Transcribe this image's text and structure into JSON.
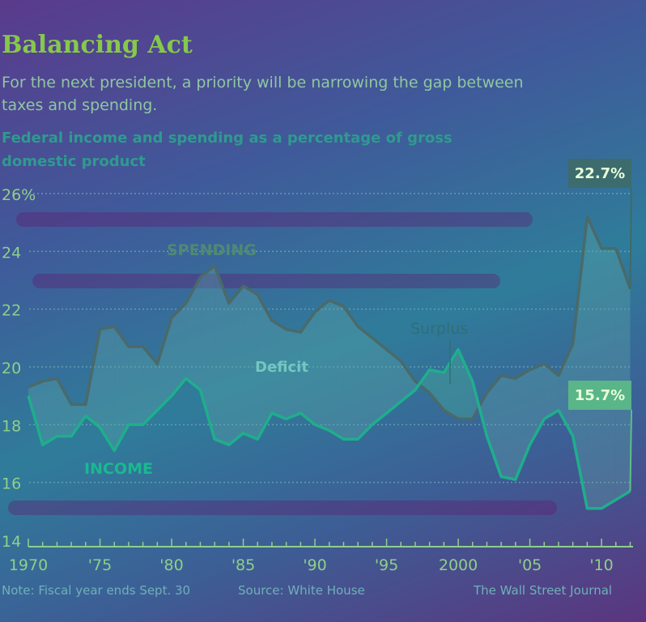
{
  "header": {
    "title": "Balancing Act",
    "subtitle": "For the next president, a priority will be narrowing the gap between taxes and spending.",
    "chart_heading": "Federal income and spending as a percentage of gross domestic product"
  },
  "footer": {
    "note": "Note: Fiscal year ends Sept. 30",
    "source": "Source: White House",
    "brand": "The Wall Street Journal"
  },
  "colors": {
    "spending_line": "#4a6a6a",
    "income_line": "#1fae8c",
    "deficit_fill": "#5fa8a8",
    "surplus_fill": "#4bb89a",
    "grid": "#6fa8b8",
    "axis_text": "#8ecf8a",
    "label_spending": "#4f8a72",
    "label_income": "#1ab890",
    "label_deficit": "#74c7c0",
    "badge_spending_bg": "#3e6b66",
    "badge_income_bg": "#5ebf86",
    "badge_text": "#e6ffd8"
  },
  "chart_data": {
    "type": "line",
    "x": [
      1970,
      1971,
      1972,
      1973,
      1974,
      1975,
      1976,
      1977,
      1978,
      1979,
      1980,
      1981,
      1982,
      1983,
      1984,
      1985,
      1986,
      1987,
      1988,
      1989,
      1990,
      1991,
      1992,
      1993,
      1994,
      1995,
      1996,
      1997,
      1998,
      1999,
      2000,
      2001,
      2002,
      2003,
      2004,
      2005,
      2006,
      2007,
      2008,
      2009,
      2010,
      2011,
      2012
    ],
    "series": [
      {
        "name": "SPENDING",
        "values": [
          19.3,
          19.5,
          19.6,
          18.7,
          18.7,
          21.3,
          21.4,
          20.7,
          20.7,
          20.1,
          21.7,
          22.2,
          23.1,
          23.5,
          22.2,
          22.8,
          22.5,
          21.6,
          21.3,
          21.2,
          21.9,
          22.3,
          22.1,
          21.4,
          21.0,
          20.6,
          20.2,
          19.5,
          19.1,
          18.5,
          18.2,
          18.2,
          19.1,
          19.7,
          19.6,
          19.9,
          20.1,
          19.7,
          20.8,
          25.2,
          24.1,
          24.1,
          22.7
        ]
      },
      {
        "name": "INCOME",
        "values": [
          19.0,
          17.3,
          17.6,
          17.6,
          18.3,
          17.9,
          17.1,
          18.0,
          18.0,
          18.5,
          19.0,
          19.6,
          19.2,
          17.5,
          17.3,
          17.7,
          17.5,
          18.4,
          18.2,
          18.4,
          18.0,
          17.8,
          17.5,
          17.5,
          18.0,
          18.4,
          18.8,
          19.2,
          19.9,
          19.8,
          20.6,
          19.5,
          17.6,
          16.2,
          16.1,
          17.3,
          18.2,
          18.5,
          17.6,
          15.1,
          15.1,
          15.4,
          15.7
        ]
      }
    ],
    "ylim": [
      14,
      26
    ],
    "y_ticks": [
      "26%",
      "24",
      "22",
      "20",
      "18",
      "16",
      "14"
    ],
    "y_tick_values": [
      26,
      24,
      22,
      20,
      18,
      16,
      14
    ],
    "x_tick_labels": [
      "1970",
      "'75",
      "'80",
      "'85",
      "'90",
      "'95",
      "2000",
      "'05",
      "'10"
    ],
    "x_tick_values": [
      1970,
      1975,
      1980,
      1985,
      1990,
      1995,
      2000,
      2005,
      2010
    ],
    "annotations": {
      "spending_label": "SPENDING",
      "income_label": "INCOME",
      "deficit_label": "Deficit",
      "surplus_label": "Surplus",
      "spending_end_value": "22.7%",
      "income_end_value": "15.7%"
    },
    "grid": true
  }
}
